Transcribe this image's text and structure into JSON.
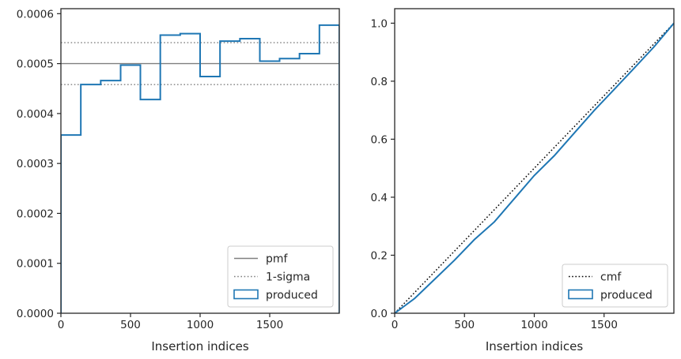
{
  "chart_data": [
    {
      "type": "line",
      "subtype": "histogram-step",
      "title": "",
      "xlabel": "Insertion indices",
      "ylabel": "",
      "xlim": [
        0,
        2000
      ],
      "ylim": [
        0,
        0.00061
      ],
      "xticks": [
        0,
        500,
        1000,
        1500
      ],
      "xtick_labels": [
        "0",
        "500",
        "1000",
        "1500"
      ],
      "yticks": [
        0,
        0.0001,
        0.0002,
        0.0003,
        0.0004,
        0.0005,
        0.0006
      ],
      "ytick_labels": [
        "0.0000",
        "0.0001",
        "0.0002",
        "0.0003",
        "0.0004",
        "0.0005",
        "0.0006"
      ],
      "grid": false,
      "legend_position": "lower-right",
      "reference_lines": [
        {
          "name": "pmf",
          "y": 0.0005,
          "style": "solid",
          "color": "#808080"
        },
        {
          "name": "1-sigma",
          "y": 0.000542,
          "style": "dotted",
          "color": "#808080"
        },
        {
          "name": "1-sigma",
          "y": 0.000458,
          "style": "dotted",
          "color": "#808080",
          "legend": false
        }
      ],
      "series": [
        {
          "name": "produced",
          "color": "#1f77b4",
          "bin_edges": [
            0,
            143,
            286,
            429,
            571,
            714,
            857,
            1000,
            1143,
            1286,
            1429,
            1571,
            1714,
            1857,
            2000
          ],
          "values": [
            0.000357,
            0.000458,
            0.000466,
            0.000497,
            0.000428,
            0.000557,
            0.00056,
            0.000474,
            0.000545,
            0.00055,
            0.000505,
            0.00051,
            0.00052,
            0.000577
          ]
        }
      ],
      "legend": [
        "pmf",
        "1-sigma",
        "produced"
      ]
    },
    {
      "type": "line",
      "title": "",
      "xlabel": "Insertion indices",
      "ylabel": "",
      "xlim": [
        0,
        2000
      ],
      "ylim": [
        0,
        1.05
      ],
      "xticks": [
        0,
        500,
        1000,
        1500
      ],
      "xtick_labels": [
        "0",
        "500",
        "1000",
        "1500"
      ],
      "yticks": [
        0,
        0.2,
        0.4,
        0.6,
        0.8,
        1.0
      ],
      "ytick_labels": [
        "0.0",
        "0.2",
        "0.4",
        "0.6",
        "0.8",
        "1.0"
      ],
      "grid": false,
      "legend_position": "lower-right",
      "series": [
        {
          "name": "cmf",
          "style": "dotted",
          "color": "#000000",
          "x": [
            0,
            2000
          ],
          "y": [
            0,
            1.0
          ]
        },
        {
          "name": "produced",
          "style": "step",
          "color": "#1f77b4",
          "x": [
            0,
            143,
            286,
            429,
            571,
            714,
            857,
            1000,
            1143,
            1286,
            1429,
            1571,
            1714,
            1857,
            2000
          ],
          "y": [
            0,
            0.051,
            0.117,
            0.183,
            0.254,
            0.315,
            0.395,
            0.475,
            0.543,
            0.621,
            0.699,
            0.771,
            0.844,
            0.918,
            1.0
          ]
        }
      ],
      "legend": [
        "cmf",
        "produced"
      ]
    }
  ]
}
